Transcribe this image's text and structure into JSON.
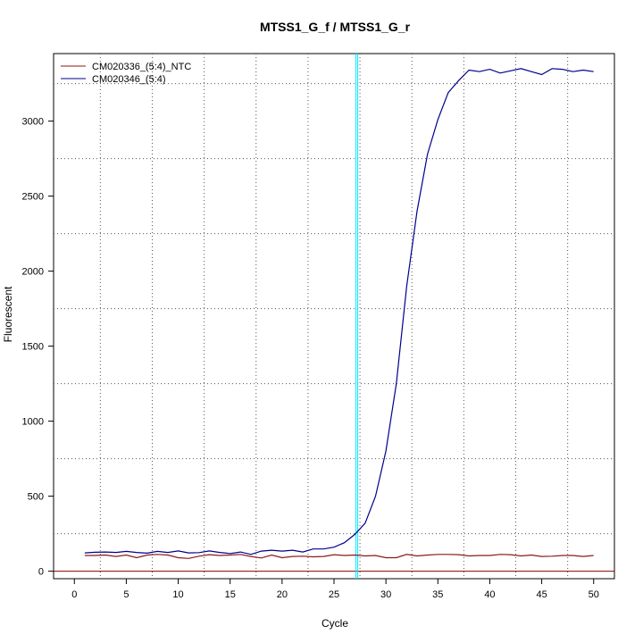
{
  "chart_data": {
    "type": "line",
    "title": "MTSS1_G_f / MTSS1_G_r",
    "xlabel": "Cycle",
    "ylabel": "Fluorescent",
    "xlim": [
      -2,
      52
    ],
    "ylim": [
      -50,
      3450
    ],
    "x_ticks": [
      0,
      5,
      10,
      15,
      20,
      25,
      30,
      35,
      40,
      45,
      50
    ],
    "x_tick_labels": [
      "0",
      "5",
      "10",
      "15",
      "20",
      "25",
      "30",
      "35",
      "40",
      "45",
      "50"
    ],
    "y_ticks": [
      0,
      500,
      1000,
      1500,
      2000,
      2500,
      3000
    ],
    "y_tick_labels": [
      "0",
      "500",
      "1000",
      "1500",
      "2000",
      "2500",
      "3000"
    ],
    "grid": true,
    "legend": "top-left",
    "threshold": 0,
    "threshold_color": "#8b0000",
    "cycle_marker": 27.2,
    "cycle_marker_color": "#00e5ff",
    "x": [
      1,
      2,
      3,
      4,
      5,
      6,
      7,
      8,
      9,
      10,
      11,
      12,
      13,
      14,
      15,
      16,
      17,
      18,
      19,
      20,
      21,
      22,
      23,
      24,
      25,
      26,
      27,
      28,
      29,
      30,
      31,
      32,
      33,
      34,
      35,
      36,
      37,
      38,
      39,
      40,
      41,
      42,
      43,
      44,
      45,
      46,
      47,
      48,
      49,
      50
    ],
    "series": [
      {
        "name": "CM020336_(5:4)_NTC",
        "color": "#8b1a1a",
        "values": [
          105,
          105,
          108,
          98,
          108,
          90,
          108,
          112,
          108,
          90,
          85,
          100,
          110,
          105,
          108,
          112,
          98,
          88,
          108,
          90,
          98,
          100,
          96,
          98,
          110,
          105,
          108,
          102,
          105,
          90,
          90,
          112,
          102,
          108,
          112,
          112,
          110,
          102,
          105,
          105,
          112,
          110,
          102,
          108,
          98,
          100,
          105,
          105,
          98,
          105
        ]
      },
      {
        "name": "CM020346_(5:4)",
        "color": "#00008b",
        "values": [
          122,
          126,
          128,
          125,
          132,
          125,
          120,
          132,
          125,
          135,
          122,
          124,
          135,
          125,
          118,
          128,
          112,
          134,
          140,
          134,
          140,
          128,
          148,
          148,
          160,
          190,
          245,
          320,
          500,
          800,
          1250,
          1900,
          2400,
          2780,
          3010,
          3190,
          3270,
          3340,
          3330,
          3345,
          3320,
          3335,
          3350,
          3330,
          3310,
          3350,
          3345,
          3330,
          3340,
          3330
        ]
      }
    ]
  }
}
